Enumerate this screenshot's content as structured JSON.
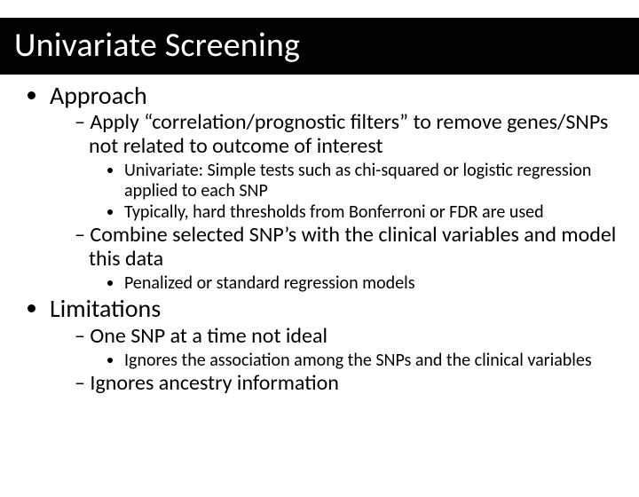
{
  "title": "Univariate Screening",
  "bullets": {
    "approach": {
      "label": "Approach",
      "sub1": {
        "text": "Apply “correlation/prognostic filters” to remove genes/SNPs not related to  outcome of interest",
        "subsub1": "Univariate: Simple tests such as chi-squared or logistic regression applied to each SNP",
        "subsub2": "Typically, hard thresholds from Bonferroni or FDR are used"
      },
      "sub2": {
        "text": "Combine selected SNP’s with the clinical variables and model this data",
        "subsub1": "Penalized or standard regression models"
      }
    },
    "limitations": {
      "label": "Limitations",
      "sub1": {
        "text": "One SNP at a time not ideal",
        "subsub1": "Ignores the association among the SNPs and the clinical variables"
      },
      "sub2": {
        "text": "Ignores ancestry information"
      }
    }
  }
}
